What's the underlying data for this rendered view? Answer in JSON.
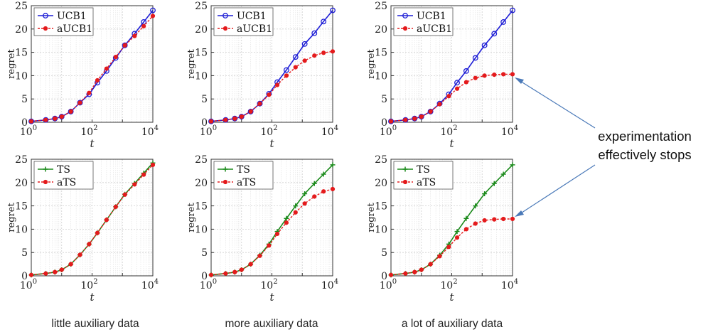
{
  "chart_data": [
    {
      "type": "line",
      "panel": "top-left",
      "xscale": "log",
      "xlim": [
        1,
        10000
      ],
      "ylim": [
        0,
        25
      ],
      "yticks": [
        0,
        5,
        10,
        15,
        20,
        25
      ],
      "xlabel": "t",
      "ylabel": "regret",
      "legend_position": "top-left",
      "grid": true,
      "x": [
        1,
        3,
        6,
        10,
        20,
        40,
        80,
        150,
        300,
        600,
        1200,
        2500,
        5000,
        10000
      ],
      "series": [
        {
          "name": "UCB1",
          "color": "#1f1fd6",
          "marker": "circle",
          "values": [
            0.2,
            0.5,
            0.8,
            1.2,
            2.3,
            4.2,
            6.0,
            8.5,
            11.0,
            13.8,
            16.5,
            19.0,
            21.5,
            24.0
          ]
        },
        {
          "name": "aUCB1",
          "color": "#e41a1c",
          "marker": "dot",
          "values": [
            0.2,
            0.5,
            0.8,
            1.2,
            2.3,
            4.2,
            6.3,
            9.0,
            11.5,
            14.0,
            16.5,
            18.5,
            20.6,
            22.8
          ]
        }
      ]
    },
    {
      "type": "line",
      "panel": "top-middle",
      "xscale": "log",
      "xlim": [
        1,
        10000
      ],
      "ylim": [
        0,
        25
      ],
      "yticks": [
        0,
        5,
        10,
        15,
        20,
        25
      ],
      "xlabel": "t",
      "ylabel": "regret",
      "legend_position": "top-left",
      "grid": true,
      "x": [
        1,
        3,
        6,
        10,
        20,
        40,
        80,
        150,
        300,
        600,
        1200,
        2500,
        5000,
        10000
      ],
      "series": [
        {
          "name": "UCB1",
          "color": "#1f1fd6",
          "marker": "circle",
          "values": [
            0.2,
            0.5,
            0.8,
            1.2,
            2.3,
            4.0,
            6.1,
            8.6,
            11.2,
            14.0,
            16.8,
            19.1,
            21.6,
            24.0
          ]
        },
        {
          "name": "aUCB1",
          "color": "#e41a1c",
          "marker": "dot",
          "values": [
            0.2,
            0.5,
            0.8,
            1.2,
            2.3,
            4.0,
            5.9,
            8.0,
            10.0,
            11.8,
            13.2,
            14.3,
            14.9,
            15.2
          ]
        }
      ]
    },
    {
      "type": "line",
      "panel": "top-right",
      "xscale": "log",
      "xlim": [
        1,
        10000
      ],
      "ylim": [
        0,
        25
      ],
      "yticks": [
        0,
        5,
        10,
        15,
        20,
        25
      ],
      "xlabel": "t",
      "ylabel": "regret",
      "legend_position": "top-left",
      "grid": true,
      "x": [
        1,
        3,
        6,
        10,
        20,
        40,
        80,
        150,
        300,
        600,
        1200,
        2500,
        5000,
        10000
      ],
      "series": [
        {
          "name": "UCB1",
          "color": "#1f1fd6",
          "marker": "circle",
          "values": [
            0.2,
            0.5,
            0.8,
            1.2,
            2.3,
            4.0,
            6.0,
            8.5,
            11.0,
            13.8,
            16.5,
            19.0,
            21.5,
            24.0
          ]
        },
        {
          "name": "aUCB1",
          "color": "#e41a1c",
          "marker": "dot",
          "values": [
            0.2,
            0.5,
            0.8,
            1.2,
            2.3,
            3.9,
            5.6,
            7.2,
            8.6,
            9.5,
            10.0,
            10.2,
            10.3,
            10.3
          ]
        }
      ]
    },
    {
      "type": "line",
      "panel": "bottom-left",
      "xscale": "log",
      "xlim": [
        1,
        10000
      ],
      "ylim": [
        0,
        25
      ],
      "yticks": [
        0,
        5,
        10,
        15,
        20,
        25
      ],
      "xlabel": "t",
      "ylabel": "regret",
      "legend_position": "top-left",
      "grid": true,
      "x": [
        1,
        3,
        6,
        10,
        20,
        40,
        80,
        150,
        300,
        600,
        1200,
        2500,
        5000,
        10000
      ],
      "series": [
        {
          "name": "TS",
          "color": "#1a8a1a",
          "marker": "plus",
          "values": [
            0.2,
            0.5,
            0.8,
            1.3,
            2.5,
            4.5,
            6.8,
            9.2,
            12.0,
            14.8,
            17.5,
            19.8,
            22.0,
            24.2
          ]
        },
        {
          "name": "aTS",
          "color": "#e41a1c",
          "marker": "dot",
          "values": [
            0.2,
            0.5,
            0.8,
            1.3,
            2.5,
            4.5,
            6.8,
            9.2,
            12.0,
            14.8,
            17.4,
            19.6,
            21.7,
            23.8
          ]
        }
      ]
    },
    {
      "type": "line",
      "panel": "bottom-middle",
      "xscale": "log",
      "xlim": [
        1,
        10000
      ],
      "ylim": [
        0,
        25
      ],
      "yticks": [
        0,
        5,
        10,
        15,
        20,
        25
      ],
      "xlabel": "t",
      "ylabel": "regret",
      "legend_position": "top-left",
      "grid": true,
      "x": [
        1,
        3,
        6,
        10,
        20,
        40,
        80,
        150,
        300,
        600,
        1200,
        2500,
        5000,
        10000
      ],
      "series": [
        {
          "name": "TS",
          "color": "#1a8a1a",
          "marker": "plus",
          "values": [
            0.2,
            0.5,
            0.8,
            1.3,
            2.5,
            4.4,
            6.8,
            9.5,
            12.3,
            15.0,
            17.6,
            19.8,
            21.8,
            23.8
          ]
        },
        {
          "name": "aTS",
          "color": "#e41a1c",
          "marker": "dot",
          "values": [
            0.2,
            0.5,
            0.8,
            1.3,
            2.5,
            4.3,
            6.5,
            9.0,
            11.4,
            13.6,
            15.5,
            17.0,
            18.1,
            18.6
          ]
        }
      ]
    },
    {
      "type": "line",
      "panel": "bottom-right",
      "xscale": "log",
      "xlim": [
        1,
        10000
      ],
      "ylim": [
        0,
        25
      ],
      "yticks": [
        0,
        5,
        10,
        15,
        20,
        25
      ],
      "xlabel": "t",
      "ylabel": "regret",
      "legend_position": "top-left",
      "grid": true,
      "x": [
        1,
        3,
        6,
        10,
        20,
        40,
        80,
        150,
        300,
        600,
        1200,
        2500,
        5000,
        10000
      ],
      "series": [
        {
          "name": "TS",
          "color": "#1a8a1a",
          "marker": "plus",
          "values": [
            0.2,
            0.5,
            0.8,
            1.3,
            2.5,
            4.4,
            6.8,
            9.5,
            12.3,
            15.0,
            17.6,
            19.8,
            21.8,
            23.8
          ]
        },
        {
          "name": "aTS",
          "color": "#e41a1c",
          "marker": "dot",
          "values": [
            0.2,
            0.5,
            0.8,
            1.3,
            2.5,
            4.2,
            6.2,
            8.2,
            10.0,
            11.2,
            11.9,
            12.1,
            12.2,
            12.2
          ]
        }
      ]
    }
  ],
  "captions": [
    "little auxiliary data",
    "more auxiliary data",
    "a lot of auxiliary data"
  ],
  "annotation": {
    "lines": [
      "experimentation",
      "effectively stops"
    ],
    "arrow_color": "#4a79b8"
  }
}
